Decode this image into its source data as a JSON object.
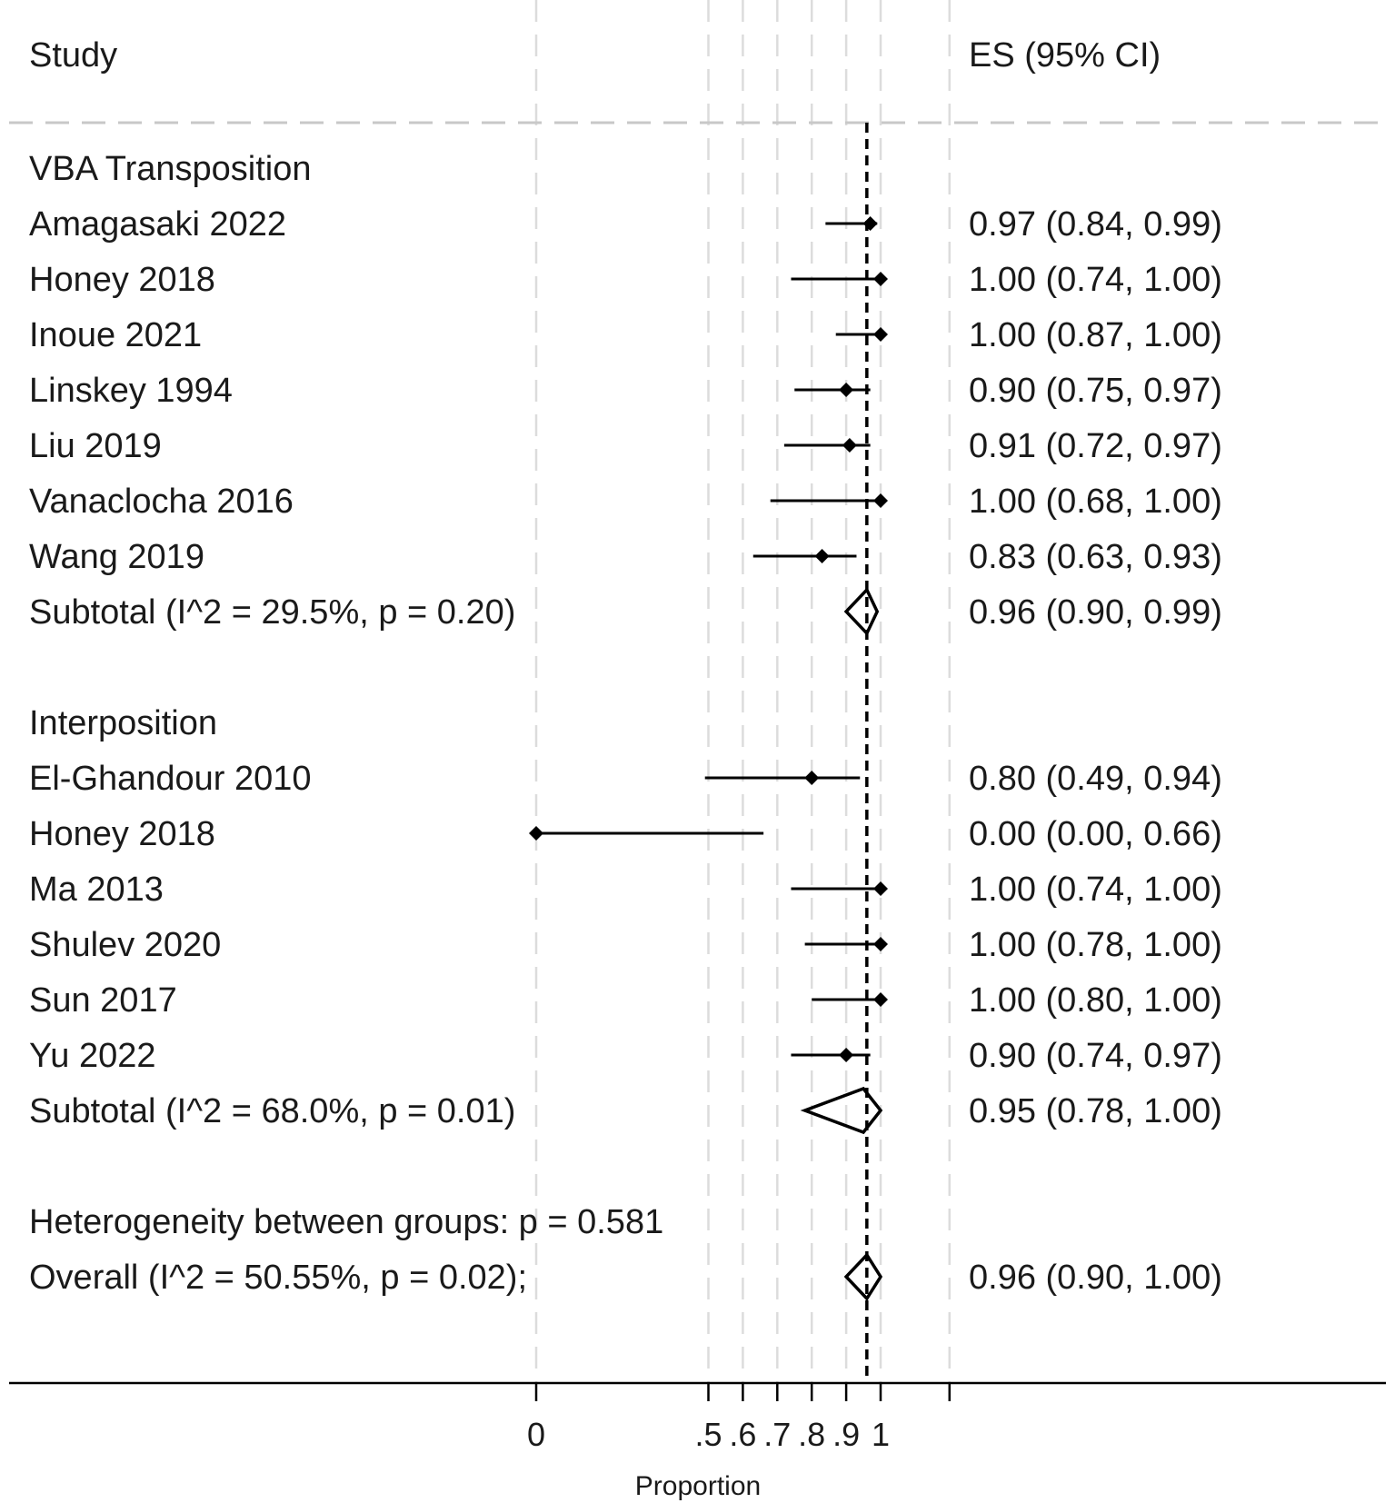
{
  "chart_data": {
    "type": "forest",
    "headers": {
      "study": "Study",
      "es": "ES (95% CI)"
    },
    "x_axis": {
      "label": "Proportion",
      "ticks": [
        {
          "value": 0,
          "label": "0"
        },
        {
          "value": 0.5,
          "label": ".5"
        },
        {
          "value": 0.6,
          "label": ".6"
        },
        {
          "value": 0.7,
          "label": ".7"
        },
        {
          "value": 0.8,
          "label": ".8"
        },
        {
          "value": 0.9,
          "label": ".9"
        },
        {
          "value": 1.0,
          "label": "1"
        },
        {
          "value": 1.2,
          "label": ""
        }
      ],
      "range": [
        0,
        1.2
      ]
    },
    "reference_line": {
      "value": 0.96,
      "style": "dashed"
    },
    "groups": [
      {
        "name": "VBA Transposition",
        "studies": [
          {
            "label": "Amagasaki 2022",
            "es": 0.97,
            "lo": 0.84,
            "hi": 0.99,
            "text": "0.97 (0.84, 0.99)"
          },
          {
            "label": "Honey 2018",
            "es": 1.0,
            "lo": 0.74,
            "hi": 1.0,
            "text": "1.00 (0.74, 1.00)"
          },
          {
            "label": "Inoue 2021",
            "es": 1.0,
            "lo": 0.87,
            "hi": 1.0,
            "text": "1.00 (0.87, 1.00)"
          },
          {
            "label": "Linskey 1994",
            "es": 0.9,
            "lo": 0.75,
            "hi": 0.97,
            "text": "0.90 (0.75, 0.97)"
          },
          {
            "label": "Liu 2019",
            "es": 0.91,
            "lo": 0.72,
            "hi": 0.97,
            "text": "0.91 (0.72, 0.97)"
          },
          {
            "label": "Vanaclocha 2016",
            "es": 1.0,
            "lo": 0.68,
            "hi": 1.0,
            "text": "1.00 (0.68, 1.00)"
          },
          {
            "label": "Wang 2019",
            "es": 0.83,
            "lo": 0.63,
            "hi": 0.93,
            "text": "0.83 (0.63, 0.93)"
          }
        ],
        "subtotal": {
          "label": "Subtotal  (I^2 = 29.5%, p = 0.20)",
          "es": 0.96,
          "lo": 0.9,
          "hi": 0.99,
          "text": "0.96 (0.90, 0.99)"
        }
      },
      {
        "name": "Interposition",
        "studies": [
          {
            "label": "El-Ghandour 2010",
            "es": 0.8,
            "lo": 0.49,
            "hi": 0.94,
            "text": "0.80 (0.49, 0.94)"
          },
          {
            "label": "Honey 2018",
            "es": 0.0,
            "lo": 0.0,
            "hi": 0.66,
            "text": "0.00 (0.00, 0.66)"
          },
          {
            "label": "Ma 2013",
            "es": 1.0,
            "lo": 0.74,
            "hi": 1.0,
            "text": "1.00 (0.74, 1.00)"
          },
          {
            "label": "Shulev 2020",
            "es": 1.0,
            "lo": 0.78,
            "hi": 1.0,
            "text": "1.00 (0.78, 1.00)"
          },
          {
            "label": "Sun 2017",
            "es": 1.0,
            "lo": 0.8,
            "hi": 1.0,
            "text": "1.00 (0.80, 1.00)"
          },
          {
            "label": "Yu 2022",
            "es": 0.9,
            "lo": 0.74,
            "hi": 0.97,
            "text": "0.90 (0.74, 0.97)"
          }
        ],
        "subtotal": {
          "label": "Subtotal  (I^2 = 68.0%, p = 0.01)",
          "es": 0.95,
          "lo": 0.78,
          "hi": 1.0,
          "text": "0.95 (0.78, 1.00)"
        }
      }
    ],
    "heterogeneity": "Heterogeneity between groups: p = 0.581",
    "overall": {
      "label": "Overall  (I^2 = 50.55%, p = 0.02);",
      "es": 0.96,
      "lo": 0.9,
      "hi": 1.0,
      "text": "0.96 (0.90, 1.00)"
    }
  }
}
